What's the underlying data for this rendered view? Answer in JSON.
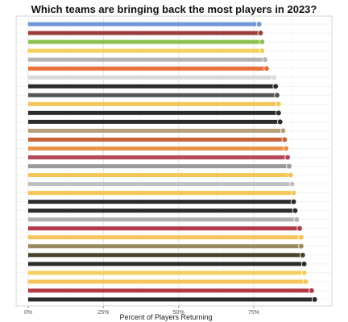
{
  "chart_data": {
    "type": "bar",
    "orientation": "horizontal",
    "title": "Which teams are bringing back the most players in 2023?",
    "xlabel": "Percent of Players Returning",
    "ylabel": "",
    "xlim": [
      0,
      100
    ],
    "xticks": [
      {
        "value": 0,
        "label": "0%"
      },
      {
        "value": 25,
        "label": "25%"
      },
      {
        "value": 50,
        "label": "50%"
      },
      {
        "value": 75,
        "label": "75%"
      }
    ],
    "grid": true,
    "bars": [
      {
        "value": 76.5,
        "color": "#6f97d6"
      },
      {
        "value": 77.0,
        "color": "#9b3b3b"
      },
      {
        "value": 77.5,
        "color": "#8cc152"
      },
      {
        "value": 77.5,
        "color": "#f3d060"
      },
      {
        "value": 78.5,
        "color": "#b3b3b3"
      },
      {
        "value": 79.0,
        "color": "#e8703a"
      },
      {
        "value": 81.5,
        "color": "#d9d9d9"
      },
      {
        "value": 82.0,
        "color": "#2b2b2b"
      },
      {
        "value": 82.5,
        "color": "#555555"
      },
      {
        "value": 83.0,
        "color": "#f3c55a"
      },
      {
        "value": 83.0,
        "color": "#2b2b2b"
      },
      {
        "value": 83.5,
        "color": "#2b2b2b"
      },
      {
        "value": 84.5,
        "color": "#b7a07a"
      },
      {
        "value": 85.0,
        "color": "#c8643c"
      },
      {
        "value": 85.5,
        "color": "#e8934a"
      },
      {
        "value": 86.0,
        "color": "#b54a5a"
      },
      {
        "value": 86.5,
        "color": "#9a9a9a"
      },
      {
        "value": 87.0,
        "color": "#f3c55a"
      },
      {
        "value": 87.5,
        "color": "#c0c0c0"
      },
      {
        "value": 88.0,
        "color": "#f3c55a"
      },
      {
        "value": 88.0,
        "color": "#2b2b2b"
      },
      {
        "value": 88.5,
        "color": "#2b2b2b"
      },
      {
        "value": 89.0,
        "color": "#b0b0b0"
      },
      {
        "value": 90.0,
        "color": "#b23b4a"
      },
      {
        "value": 90.5,
        "color": "#f3c55a"
      },
      {
        "value": 90.5,
        "color": "#9a8a60"
      },
      {
        "value": 91.0,
        "color": "#4a4228"
      },
      {
        "value": 91.5,
        "color": "#2b2b2b"
      },
      {
        "value": 91.5,
        "color": "#f3d060"
      },
      {
        "value": 92.0,
        "color": "#f3c55a"
      },
      {
        "value": 94.0,
        "color": "#b33a45"
      },
      {
        "value": 95.0,
        "color": "#2b2b2b"
      }
    ]
  }
}
